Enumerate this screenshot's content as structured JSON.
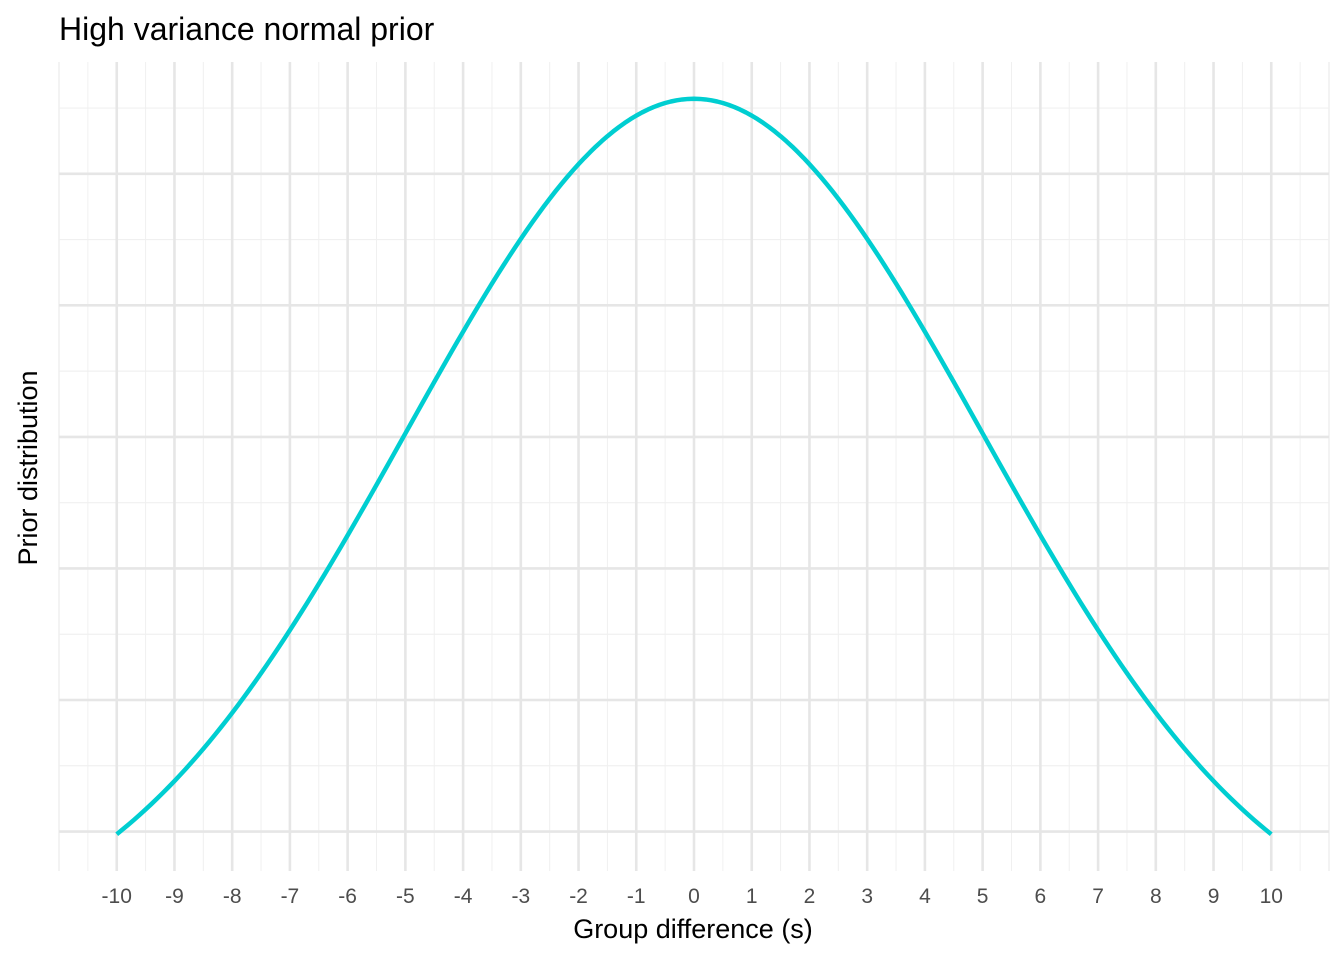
{
  "chart_data": {
    "type": "line",
    "title": "High variance normal prior",
    "xlabel": "Group difference (s)",
    "ylabel": "Prior distribution",
    "xlim": [
      -11,
      11
    ],
    "x_ticks": [
      "-10",
      "-9",
      "-8",
      "-7",
      "-6",
      "-5",
      "-4",
      "-3",
      "-2",
      "-1",
      "0",
      "1",
      "2",
      "3",
      "4",
      "5",
      "6",
      "7",
      "8",
      "9",
      "10"
    ],
    "y_tick_labels_shown": false,
    "grid": true,
    "legend": "none",
    "series": [
      {
        "distribution": "normal",
        "mean": 0,
        "sd": 5,
        "x_range": [
          -10,
          10
        ],
        "color": "#00CED1"
      }
    ]
  }
}
